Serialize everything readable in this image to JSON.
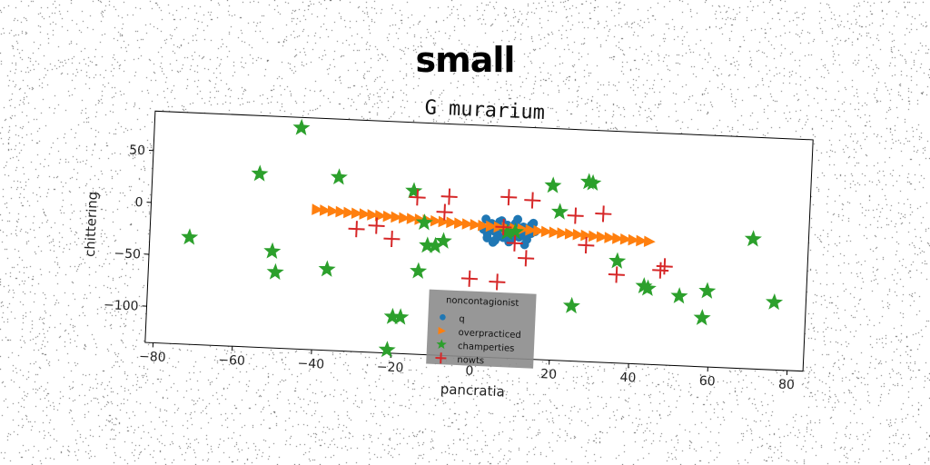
{
  "suptitle": "small",
  "chart_data": {
    "type": "scatter",
    "title": "G murarium",
    "xlabel": "pancratia",
    "ylabel": "chittering",
    "xlim": [
      -82,
      84
    ],
    "ylim": [
      -135,
      88
    ],
    "xticks": [
      -80,
      -60,
      -40,
      -20,
      0,
      20,
      40,
      60,
      80
    ],
    "xtick_labels": [
      "−80",
      "−60",
      "−40",
      "−20",
      "0",
      "20",
      "40",
      "60",
      "80"
    ],
    "yticks": [
      50,
      0,
      -50,
      -100
    ],
    "ytick_labels": [
      "50",
      "0",
      "−50",
      "−100"
    ],
    "grid": false,
    "rotation_deg": 2.5,
    "legend": {
      "title": "noncontagionist",
      "placement": "lower-center",
      "facecolor": "#8c8c8c",
      "entries": [
        "q",
        "overpracticed",
        "champerties",
        "nowts"
      ]
    },
    "series": [
      {
        "name": "q",
        "marker": "circle",
        "color": "#1f77b4",
        "x": [
          2,
          3,
          4,
          5,
          6,
          7,
          8,
          9,
          10,
          11,
          12,
          13,
          14,
          15,
          3,
          5,
          7,
          9,
          11,
          13,
          4,
          6,
          8,
          10,
          12,
          14,
          2.5,
          6.5,
          10.5,
          14.5,
          4.5,
          8.5,
          12.5
        ],
        "y": [
          -12,
          -16,
          -10,
          -14,
          -18,
          -11,
          -15,
          -9,
          -17,
          -13,
          -16,
          -10,
          -14,
          -12,
          -20,
          -22,
          -19,
          -21,
          -18,
          -20,
          -6,
          -4,
          -7,
          -5,
          -8,
          -6,
          -2,
          -3,
          -1,
          -4,
          -24,
          -23,
          -25
        ]
      },
      {
        "name": "overpracticed",
        "marker": "triangle-right",
        "color": "#ff7f0e",
        "x": [
          -40,
          -38,
          -36,
          -34,
          -32,
          -30,
          -28,
          -26,
          -24,
          -22,
          -20,
          -18,
          -16,
          -14,
          -12,
          -10,
          -8,
          -6,
          -4,
          -2,
          0,
          2,
          4,
          6,
          8,
          10,
          12,
          14,
          16,
          18,
          20,
          22,
          24,
          26,
          28,
          30,
          32,
          34,
          36,
          38,
          40,
          42,
          44
        ],
        "y": [
          0,
          -0.4,
          -0.8,
          -1.2,
          -1.6,
          -2,
          -2.4,
          -2.8,
          -3.2,
          -3.6,
          -4,
          -4.4,
          -4.8,
          -5.2,
          -5.6,
          -6,
          -6.4,
          -6.8,
          -7.2,
          -7.6,
          -8,
          -8.4,
          -8.8,
          -9.2,
          -9.6,
          -10,
          -10.4,
          -10.8,
          -11.2,
          -11.6,
          -12,
          -12.4,
          -12.8,
          -13.2,
          -13.6,
          -14,
          -14.4,
          -14.8,
          -15.2,
          -15.6,
          -16,
          -16.4,
          -16.8
        ]
      },
      {
        "name": "champerties",
        "marker": "star",
        "color": "#2ca02c",
        "x": [
          -45,
          -55,
          -35,
          -72,
          -51,
          -50,
          -37,
          -16,
          -13,
          -12,
          -8,
          -14,
          -20,
          -18,
          -21,
          -10,
          19,
          21,
          28,
          29,
          8,
          10,
          70,
          76,
          59,
          52,
          58,
          43,
          44,
          36,
          25
        ],
        "y": [
          78,
          32,
          32,
          -32,
          -42,
          -62,
          -57,
          22,
          -8,
          -30,
          -25,
          -55,
          -100,
          -100,
          -132,
          -30,
          33,
          8,
          38,
          37,
          -14,
          -13,
          -10,
          -70,
          -62,
          -68,
          -88,
          -60,
          -62,
          -37,
          -82
        ]
      },
      {
        "name": "nowts",
        "marker": "plus",
        "color": "#d62728",
        "x": [
          -15,
          -8,
          -7,
          -25,
          -30,
          -21,
          8,
          14,
          25,
          32,
          7,
          13,
          28,
          36,
          47,
          48,
          -1,
          6,
          10
        ],
        "y": [
          16,
          3,
          18,
          -13,
          -17,
          -25,
          20,
          18,
          5,
          8,
          -9,
          -38,
          -23,
          -50,
          -44,
          -40,
          -60,
          -62,
          -24
        ]
      }
    ]
  }
}
